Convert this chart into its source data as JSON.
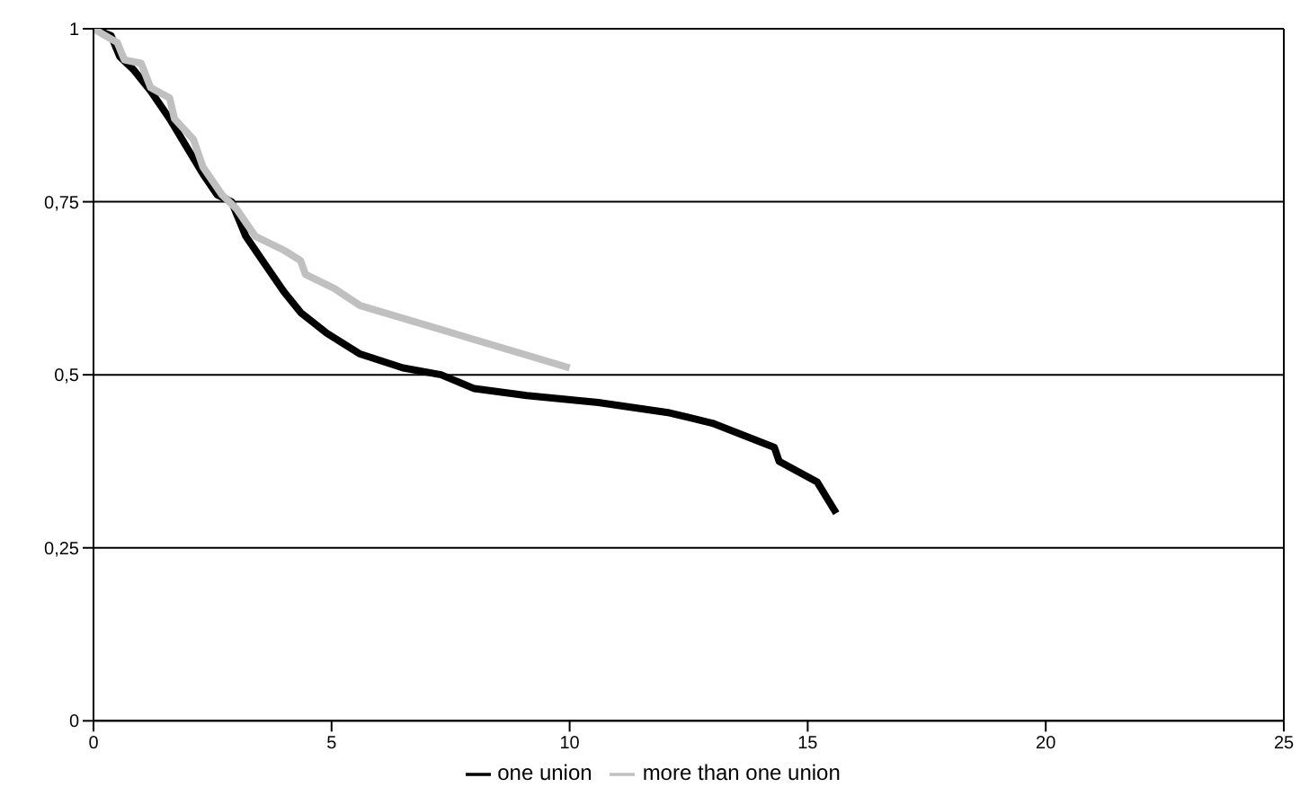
{
  "chart_data": {
    "type": "line",
    "xlim": [
      0,
      25
    ],
    "xticks": [
      0,
      5,
      10,
      15,
      20,
      25
    ],
    "ylim": [
      0,
      1
    ],
    "yticks": [
      {
        "value": 0,
        "label": "0"
      },
      {
        "value": 0.25,
        "label": "0,25"
      },
      {
        "value": 0.5,
        "label": "0,5"
      },
      {
        "value": 0.75,
        "label": "0,75"
      },
      {
        "value": 1,
        "label": "1"
      }
    ],
    "grid": "y",
    "legend": "bottom",
    "marker": "none",
    "series": [
      {
        "name": "one union",
        "color": "#000000",
        "x": [
          0,
          0.37,
          0.55,
          0.85,
          1.2,
          1.6,
          1.95,
          2.3,
          2.6,
          2.9,
          3.2,
          3.6,
          4.0,
          4.35,
          4.9,
          5.6,
          6.5,
          7.3,
          8.0,
          9.1,
          10.6,
          12.1,
          13.0,
          14.3,
          14.4,
          15.2,
          15.6
        ],
        "values": [
          1,
          0.99,
          0.96,
          0.94,
          0.91,
          0.87,
          0.83,
          0.79,
          0.76,
          0.75,
          0.7,
          0.66,
          0.62,
          0.59,
          0.56,
          0.53,
          0.51,
          0.5,
          0.48,
          0.47,
          0.46,
          0.445,
          0.43,
          0.395,
          0.375,
          0.345,
          0.3
        ]
      },
      {
        "name": "more than one union",
        "color": "#c0c0c0",
        "x": [
          0,
          0.5,
          0.65,
          1.0,
          1.2,
          1.6,
          1.7,
          2.1,
          2.3,
          2.7,
          3.0,
          3.4,
          4.0,
          4.35,
          4.45,
          5.05,
          5.6,
          10.0
        ],
        "values": [
          1,
          0.98,
          0.955,
          0.95,
          0.915,
          0.9,
          0.87,
          0.84,
          0.8,
          0.76,
          0.74,
          0.7,
          0.68,
          0.665,
          0.645,
          0.625,
          0.6,
          0.51
        ]
      }
    ]
  }
}
